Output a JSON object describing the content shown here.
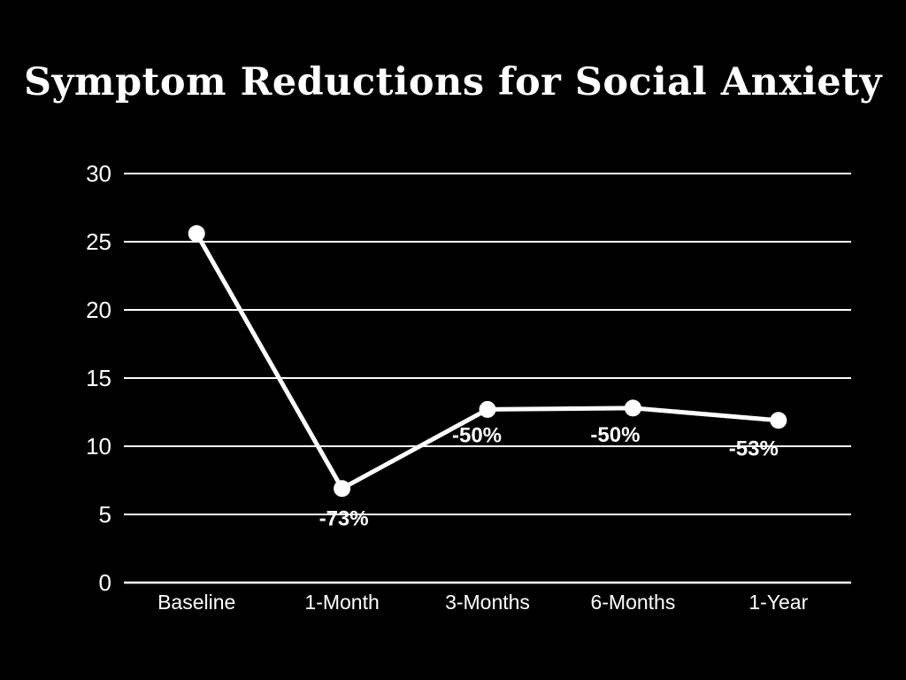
{
  "page": {
    "background_color": "#000000",
    "text_color": "#ffffff"
  },
  "chart_data": {
    "type": "line",
    "title": "Symptom Reductions for Social Anxiety",
    "categories": [
      "Baseline",
      "1-Month",
      "3-Months",
      "6-Months",
      "1-Year"
    ],
    "series": [
      {
        "name": "symptom-score",
        "values": [
          25.6,
          6.9,
          12.7,
          12.8,
          11.9
        ],
        "point_labels": [
          "",
          "-73%",
          "-50%",
          "-50%",
          "-53%"
        ],
        "color": "#ffffff"
      }
    ],
    "xlabel": "",
    "ylabel": "",
    "ylim": [
      0,
      30
    ],
    "yticks": [
      0,
      5,
      10,
      15,
      20,
      25,
      30
    ],
    "grid": true,
    "legend": false,
    "gridline_color": "#ffffff",
    "background_color": "#000000"
  }
}
